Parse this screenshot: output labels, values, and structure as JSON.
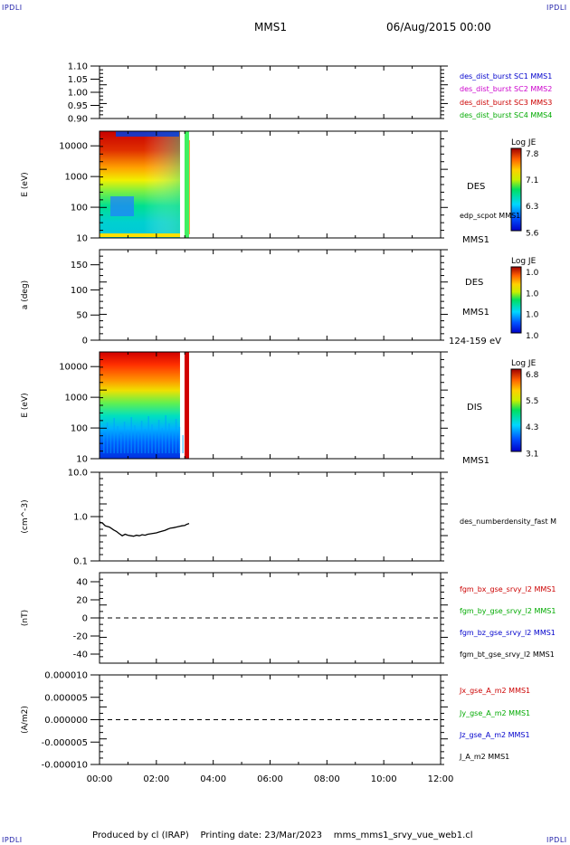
{
  "header": {
    "corner_left": "IPDLI",
    "corner_right": "IPDLI",
    "title": "MMS1",
    "date": "06/Aug/2015 00:00"
  },
  "footer": {
    "produced": "Produced by cl (IRAP)",
    "printing": "Printing date: 23/Mar/2023",
    "file": "mms_mms1_srvy_vue_web1.cl",
    "corner_bl": "IPDLI",
    "corner_br": "IPDLI"
  },
  "colors": {
    "blue": "#0000cc",
    "magenta": "#cc00cc",
    "red": "#cc0000",
    "green": "#00aa00",
    "black": "#000000"
  },
  "chart_data": [
    {
      "type": "line",
      "panel": "sc-legend",
      "ylim": [
        0.9,
        1.1
      ],
      "yticks": [
        "1.10",
        "1.05",
        "1.00",
        "0.95",
        "0.90"
      ],
      "series": [
        {
          "name": "des_dist_burst SC1 MMS1",
          "color": "#0000cc"
        },
        {
          "name": "des_dist_burst SC2 MMS2",
          "color": "#cc00cc"
        },
        {
          "name": "des_dist_burst SC3 MMS3",
          "color": "#cc0000"
        },
        {
          "name": "des_dist_burst SC4 MMS4",
          "color": "#00aa00"
        }
      ]
    },
    {
      "type": "heatmap",
      "panel": "des-energy",
      "ylabel": "E (eV)",
      "scale": "log",
      "ylim": [
        10,
        30000
      ],
      "yticks": [
        "10000",
        "1000",
        "100",
        "10"
      ],
      "side_labels": [
        "DES",
        "edp_scpot MMS1",
        "MMS1"
      ],
      "colorbar": {
        "title": "Log JE",
        "ticks": [
          "7.8",
          "7.1",
          "6.3",
          "5.6"
        ]
      },
      "data_end_hours": 3.15
    },
    {
      "type": "heatmap",
      "panel": "des-pitch",
      "ylabel": "a (deg)",
      "ylim": [
        0,
        180
      ],
      "yticks": [
        "150",
        "100",
        "50",
        "0"
      ],
      "side_labels": [
        "DES",
        "MMS1",
        "124-159 eV"
      ],
      "colorbar": {
        "title": "Log JE",
        "ticks": [
          "1.0",
          "1.0",
          "1.0",
          "1.0"
        ]
      }
    },
    {
      "type": "heatmap",
      "panel": "dis-energy",
      "ylabel": "E (eV)",
      "scale": "log",
      "ylim": [
        10,
        30000
      ],
      "yticks": [
        "10000",
        "1000",
        "100",
        "10"
      ],
      "side_labels": [
        "DIS",
        "MMS1"
      ],
      "colorbar": {
        "title": "Log JE",
        "ticks": [
          "6.8",
          "5.5",
          "4.3",
          "3.1"
        ]
      },
      "data_end_hours": 3.15
    },
    {
      "type": "line",
      "panel": "density",
      "ylabel": "(cm^-3)",
      "scale": "log",
      "ylim": [
        0.1,
        10.0
      ],
      "yticks": [
        "10.0",
        "1.0",
        "0.1"
      ],
      "series": [
        {
          "name": "des_numberdensity_fast M",
          "color": "#000000",
          "x": [
            0.0,
            0.1,
            0.2,
            0.35,
            0.5,
            0.6,
            0.7,
            0.8,
            0.9,
            1.0,
            1.1,
            1.2,
            1.3,
            1.4,
            1.5,
            1.6,
            1.7,
            1.8,
            1.9,
            2.0,
            2.1,
            2.2,
            2.3,
            2.4,
            2.5,
            2.6,
            2.7,
            2.8,
            2.9,
            3.0,
            3.05,
            3.15
          ],
          "y": [
            0.75,
            0.72,
            0.62,
            0.58,
            0.5,
            0.46,
            0.41,
            0.37,
            0.4,
            0.38,
            0.37,
            0.36,
            0.38,
            0.37,
            0.39,
            0.38,
            0.4,
            0.41,
            0.42,
            0.43,
            0.45,
            0.47,
            0.49,
            0.52,
            0.55,
            0.56,
            0.58,
            0.6,
            0.62,
            0.63,
            0.66,
            0.7
          ]
        }
      ]
    },
    {
      "type": "line",
      "panel": "bfield",
      "ylabel": "(nT)",
      "ylim": [
        -50,
        50
      ],
      "yticks": [
        "40",
        "20",
        "0",
        "-20",
        "-40"
      ],
      "series": [
        {
          "name": "fgm_bx_gse_srvy_l2 MMS1",
          "color": "#cc0000"
        },
        {
          "name": "fgm_by_gse_srvy_l2 MMS1",
          "color": "#00aa00"
        },
        {
          "name": "fgm_bz_gse_srvy_l2 MMS1",
          "color": "#0000cc"
        },
        {
          "name": "fgm_bt_gse_srvy_l2 MMS1",
          "color": "#000000"
        }
      ]
    },
    {
      "type": "line",
      "panel": "current",
      "ylabel": "(A/m2)",
      "ylim": [
        -1e-05,
        1e-05
      ],
      "yticks": [
        "0.000010",
        "0.000005",
        "0.000000",
        "-0.000005",
        "-0.000010"
      ],
      "xticks": [
        "00:00",
        "02:00",
        "04:00",
        "06:00",
        "08:00",
        "10:00",
        "12:00"
      ],
      "xlim": [
        0,
        12
      ],
      "series": [
        {
          "name": "Jx_gse_A_m2 MMS1",
          "color": "#cc0000"
        },
        {
          "name": "Jy_gse_A_m2 MMS1",
          "color": "#00aa00"
        },
        {
          "name": "Jz_gse_A_m2 MMS1",
          "color": "#0000cc"
        },
        {
          "name": "J_A_m2 MMS1",
          "color": "#000000"
        }
      ]
    }
  ]
}
